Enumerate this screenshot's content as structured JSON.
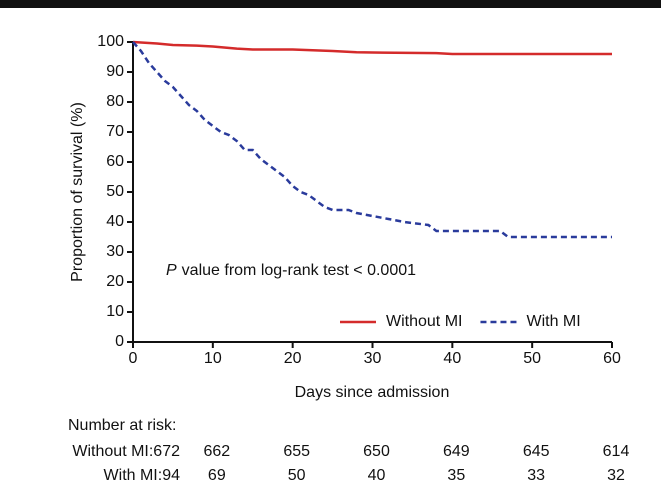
{
  "chart_data": {
    "type": "line",
    "ylabel": "Proportion of survival (%)",
    "xlabel": "Days since admission",
    "annotation_italic": "P",
    "annotation": "value from log-rank test < 0.0001",
    "xlim": [
      0,
      60
    ],
    "xticks": [
      0,
      10,
      20,
      30,
      40,
      50,
      60
    ],
    "ylim": [
      0,
      100
    ],
    "yticks": [
      0,
      10,
      20,
      30,
      40,
      50,
      60,
      70,
      80,
      90,
      100
    ],
    "legend": "lower right",
    "series": [
      {
        "name": "Without MI",
        "color": "#d42b2b",
        "dash": "solid",
        "x": [
          0,
          3,
          5,
          8,
          10,
          13,
          15,
          20,
          25,
          28,
          30,
          38,
          40,
          50,
          60
        ],
        "y": [
          100,
          99.5,
          99,
          98.8,
          98.5,
          97.8,
          97.5,
          97.5,
          97,
          96.6,
          96.5,
          96.3,
          96,
          96,
          96
        ]
      },
      {
        "name": "With MI",
        "color": "#2a3b9c",
        "dash": "dashed",
        "x": [
          0,
          1,
          2,
          3,
          4,
          5,
          6,
          7,
          8,
          9,
          10,
          11,
          12,
          13,
          14,
          15,
          16,
          17,
          18,
          19,
          20,
          21,
          22,
          23,
          24,
          25,
          27,
          28,
          30,
          32,
          34,
          37,
          38,
          46,
          47,
          60
        ],
        "y": [
          100,
          97,
          93,
          90,
          87,
          85,
          82,
          79,
          77,
          74,
          72,
          70,
          69,
          67,
          64,
          64,
          61,
          59,
          57,
          55,
          52,
          50,
          49,
          47,
          45,
          44,
          44,
          43,
          42,
          41,
          40,
          39,
          37,
          37,
          35,
          35
        ]
      }
    ],
    "risk_table": {
      "title": "Number at risk:",
      "rows": [
        {
          "label": "Without MI:672",
          "color": "#d42b2b",
          "values": [
            662,
            655,
            650,
            649,
            645,
            614
          ]
        },
        {
          "label": "With MI:94",
          "color": "#2a3b9c",
          "values": [
            69,
            50,
            40,
            35,
            33,
            32
          ]
        }
      ]
    }
  }
}
